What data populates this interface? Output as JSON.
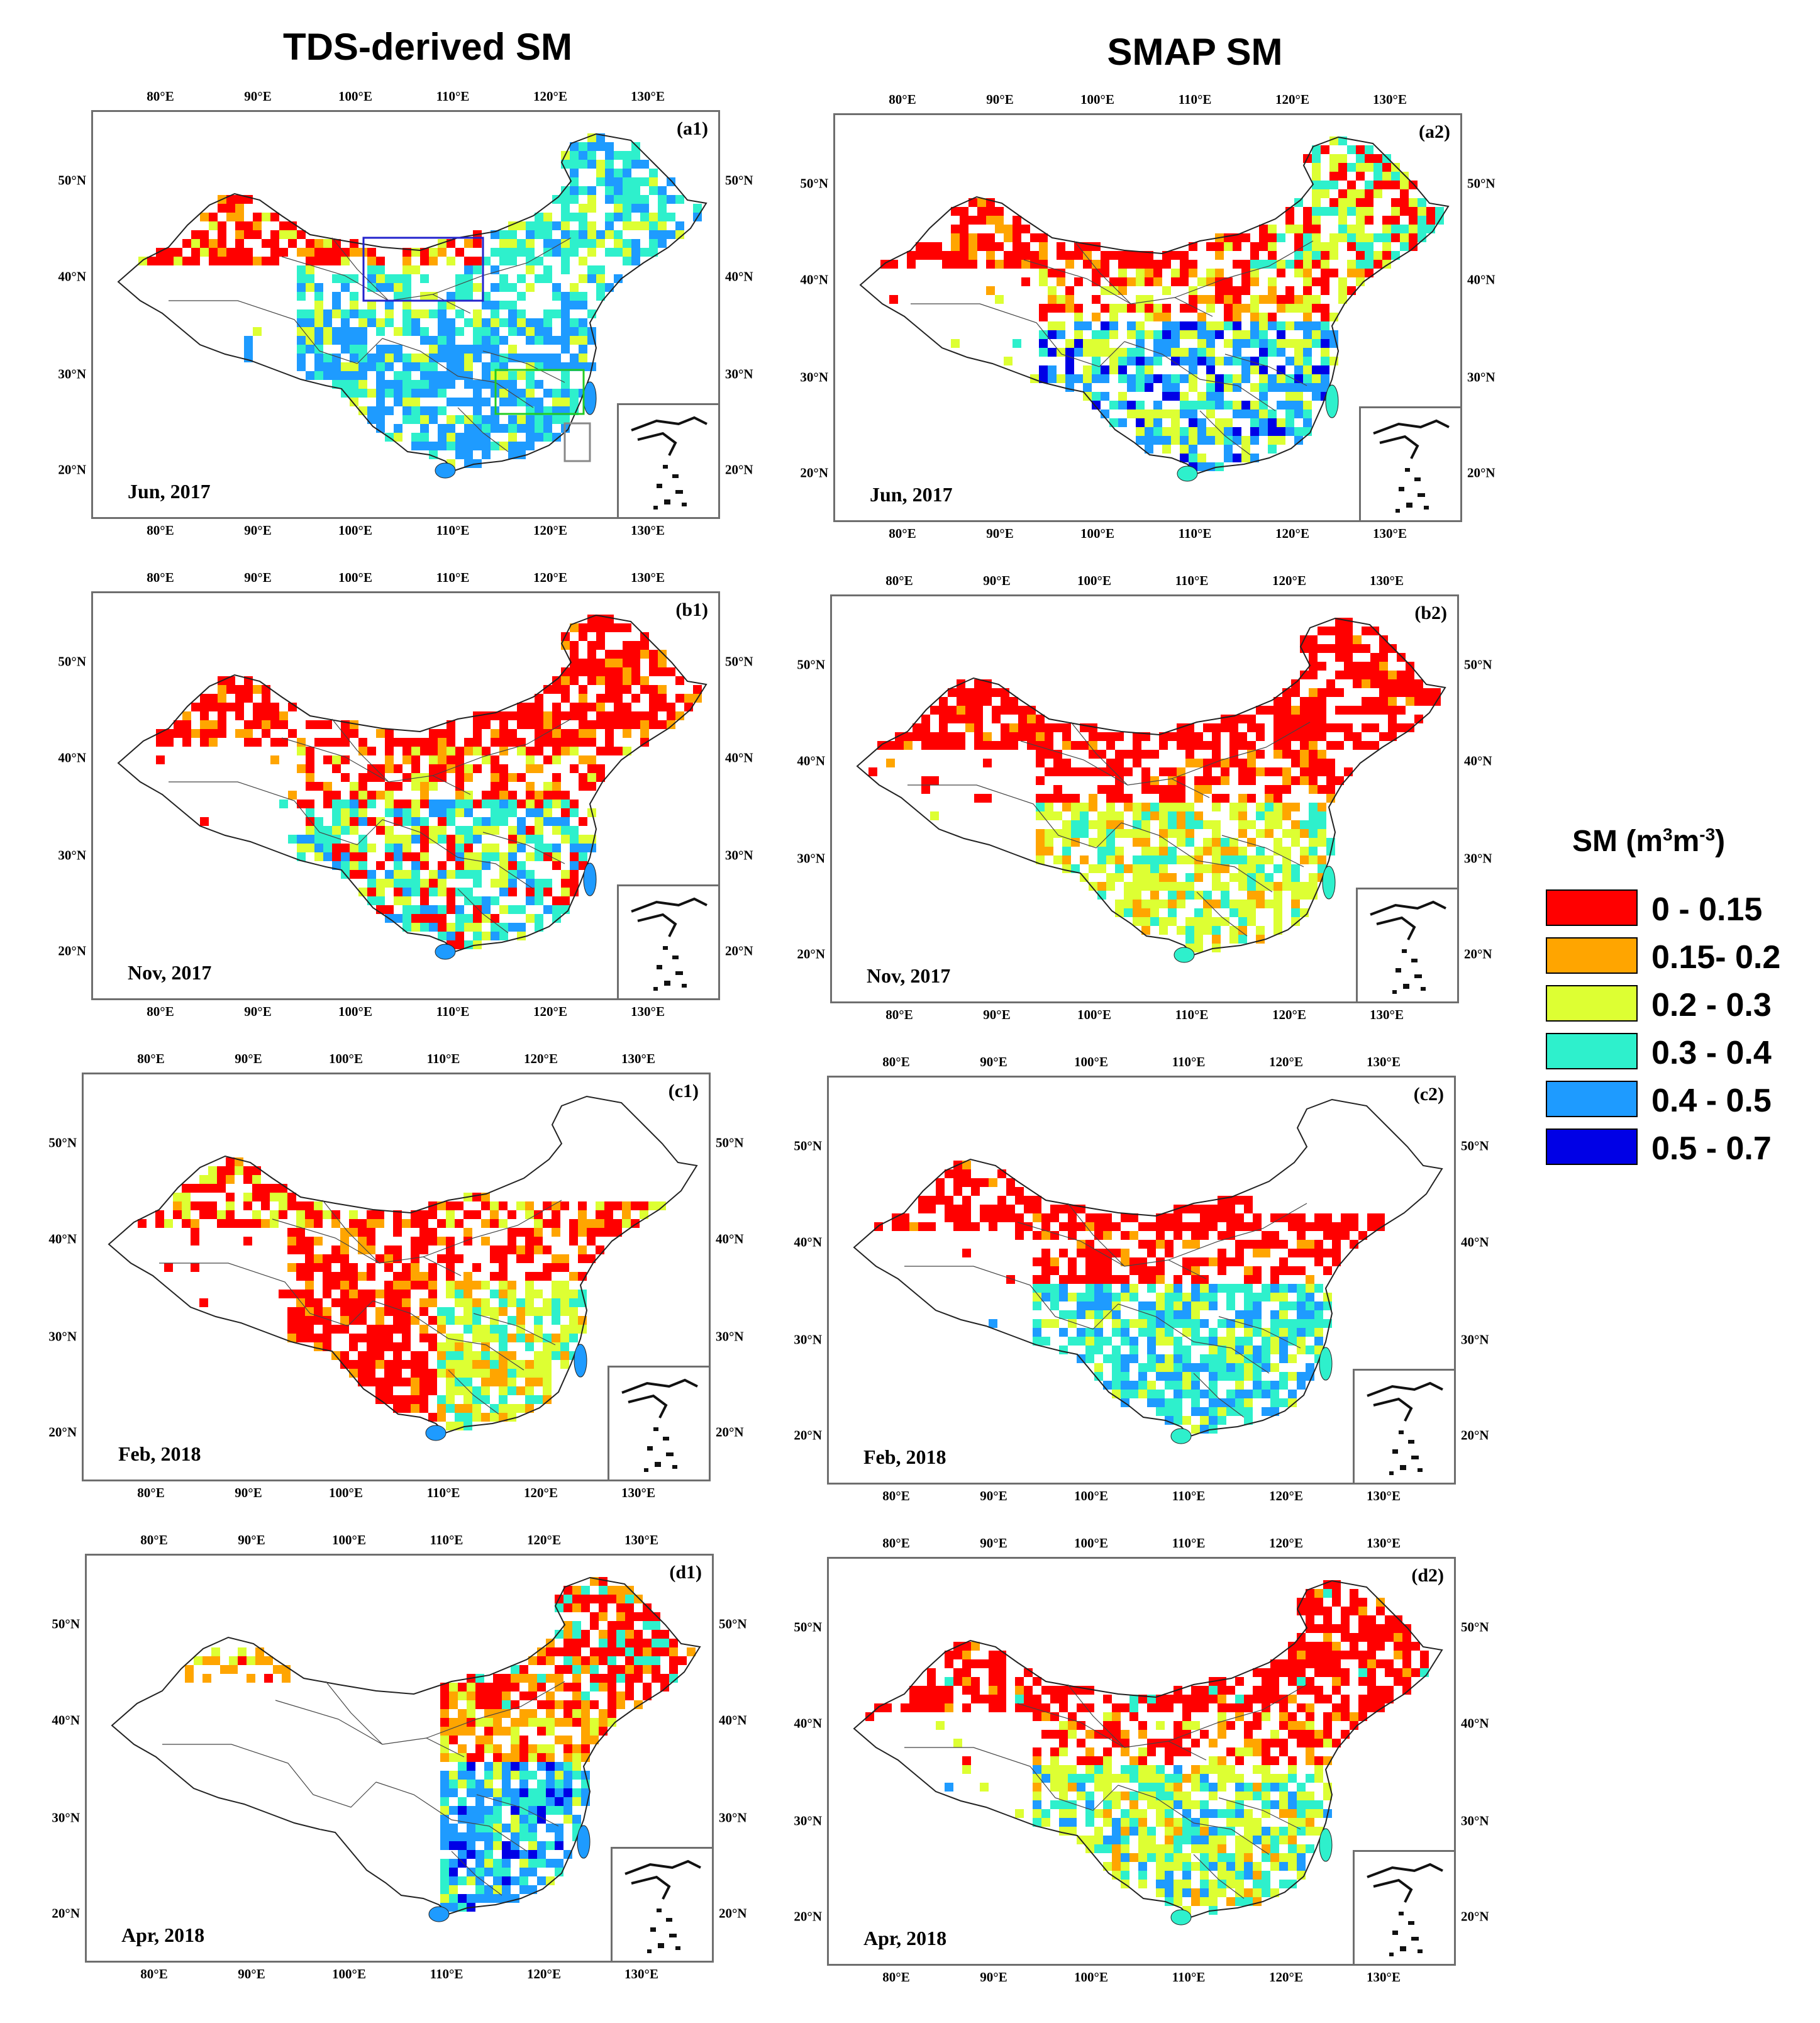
{
  "columns": {
    "left_title": "TDS-derived SM",
    "right_title": "SMAP SM"
  },
  "axes": {
    "lon_ticks": [
      "80°E",
      "90°E",
      "100°E",
      "110°E",
      "120°E",
      "130°E"
    ],
    "lat_ticks": [
      "50°N",
      "40°N",
      "30°N",
      "20°N"
    ]
  },
  "panels": [
    {
      "id": "(a1)",
      "date": "Jun, 2017",
      "source": "TDS",
      "has_boxes": true
    },
    {
      "id": "(a2)",
      "date": "Jun, 2017",
      "source": "SMAP"
    },
    {
      "id": "(b1)",
      "date": "Nov, 2017",
      "source": "TDS"
    },
    {
      "id": "(b2)",
      "date": "Nov, 2017",
      "source": "SMAP"
    },
    {
      "id": "(c1)",
      "date": "Feb, 2018",
      "source": "TDS"
    },
    {
      "id": "(c2)",
      "date": "Feb, 2018",
      "source": "SMAP"
    },
    {
      "id": "(d1)",
      "date": "Apr, 2018",
      "source": "TDS"
    },
    {
      "id": "(d2)",
      "date": "Apr, 2018",
      "source": "SMAP"
    }
  ],
  "legend": {
    "title": "SM (m",
    "title_sup1": "3",
    "title_mid": "m",
    "title_sup2": "-3",
    "title_end": ")",
    "items": [
      {
        "label": "0 - 0.15",
        "color": "#ff0000"
      },
      {
        "label": "0.15- 0.2",
        "color": "#ffa500"
      },
      {
        "label": "0.2 - 0.3",
        "color": "#ddff33"
      },
      {
        "label": "0.3 - 0.4",
        "color": "#2ef0cc"
      },
      {
        "label": "0.4 - 0.5",
        "color": "#1e9bff"
      },
      {
        "label": "0.5 - 0.7",
        "color": "#0000e6"
      }
    ]
  }
}
